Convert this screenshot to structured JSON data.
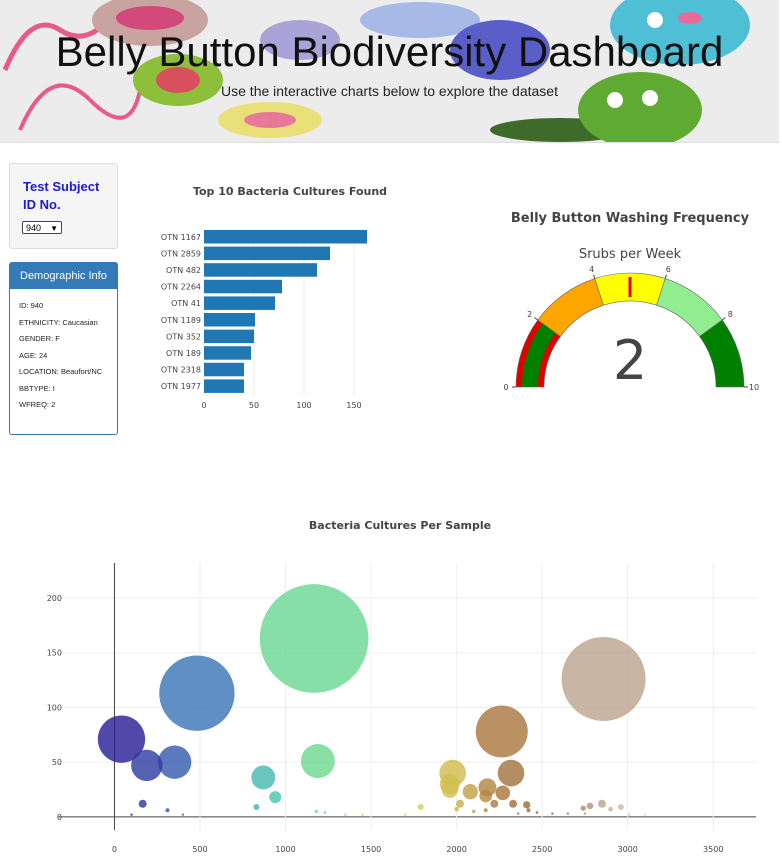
{
  "header": {
    "title": "Belly Button Biodiversity Dashboard",
    "subtitle": "Use the interactive charts below to explore the dataset"
  },
  "selector": {
    "label": "Test Subject ID No.",
    "selected": "940"
  },
  "demographics": {
    "heading": "Demographic Info",
    "rows": [
      "ID: 940",
      "ETHNICITY: Caucasian",
      "GENDER: F",
      "AGE: 24",
      "LOCATION: Beaufort/NC",
      "BBTYPE: I",
      "WFREQ: 2"
    ]
  },
  "colors": {
    "bar": "#1f77b4",
    "panel_blue": "#337ab7",
    "label_blue": "#1a1ad0"
  },
  "chart_data": [
    {
      "type": "bar",
      "orientation": "horizontal",
      "title": "Top 10 Bacteria Cultures Found",
      "categories": [
        "OTN 1167",
        "OTN 2859",
        "OTN 482",
        "OTN 2264",
        "OTN 41",
        "OTN 1189",
        "OTN 352",
        "OTN 189",
        "OTN 2318",
        "OTN 1977"
      ],
      "values": [
        163,
        126,
        113,
        78,
        71,
        51,
        50,
        47,
        40,
        40
      ],
      "xticks": [
        0,
        50,
        100,
        150
      ],
      "xlim": [
        0,
        171
      ]
    },
    {
      "type": "gauge",
      "title": "Belly Button Washing Frequency",
      "subtitle": "Srubs per Week",
      "value": 2,
      "range": [
        0,
        10
      ],
      "ticks": [
        0,
        2,
        4,
        6,
        8,
        10
      ],
      "steps": [
        {
          "range": [
            0,
            2
          ],
          "color": "#e00000"
        },
        {
          "range": [
            2,
            4
          ],
          "color": "#ffa500"
        },
        {
          "range": [
            4,
            6
          ],
          "color": "#ffff00"
        },
        {
          "range": [
            6,
            8
          ],
          "color": "#90ee90"
        },
        {
          "range": [
            8,
            10
          ],
          "color": "#008000"
        }
      ],
      "bar_color": "#008000",
      "threshold": 5
    },
    {
      "type": "scatter",
      "subtype": "bubble",
      "title": "Bacteria Cultures Per Sample",
      "xticks": [
        0,
        500,
        1000,
        1500,
        2000,
        2500,
        3000,
        3500
      ],
      "yticks": [
        0,
        50,
        100,
        150,
        200
      ],
      "xlim": [
        -330,
        3750
      ],
      "ylim": [
        -12,
        232
      ],
      "points": [
        {
          "x": 41,
          "y": 71,
          "size": 71
        },
        {
          "x": 189,
          "y": 47,
          "size": 47
        },
        {
          "x": 352,
          "y": 50,
          "size": 50
        },
        {
          "x": 482,
          "y": 113,
          "size": 113
        },
        {
          "x": 1167,
          "y": 163,
          "size": 163
        },
        {
          "x": 1189,
          "y": 51,
          "size": 51
        },
        {
          "x": 2264,
          "y": 78,
          "size": 78
        },
        {
          "x": 2859,
          "y": 126,
          "size": 126
        },
        {
          "x": 2318,
          "y": 40,
          "size": 40
        },
        {
          "x": 1977,
          "y": 40,
          "size": 40
        },
        {
          "x": 870,
          "y": 36,
          "size": 36
        },
        {
          "x": 940,
          "y": 18,
          "size": 18
        },
        {
          "x": 165,
          "y": 12,
          "size": 12
        },
        {
          "x": 310,
          "y": 6,
          "size": 6
        },
        {
          "x": 830,
          "y": 9,
          "size": 9
        },
        {
          "x": 1960,
          "y": 30,
          "size": 30
        },
        {
          "x": 1960,
          "y": 25,
          "size": 25
        },
        {
          "x": 2080,
          "y": 23,
          "size": 23
        },
        {
          "x": 2180,
          "y": 27,
          "size": 27
        },
        {
          "x": 2170,
          "y": 19,
          "size": 19
        },
        {
          "x": 2270,
          "y": 22,
          "size": 22
        },
        {
          "x": 2330,
          "y": 12,
          "size": 12
        },
        {
          "x": 2410,
          "y": 11,
          "size": 11
        },
        {
          "x": 2020,
          "y": 12,
          "size": 12
        },
        {
          "x": 2220,
          "y": 12,
          "size": 12
        },
        {
          "x": 2850,
          "y": 12,
          "size": 12
        },
        {
          "x": 2960,
          "y": 9,
          "size": 9
        },
        {
          "x": 2780,
          "y": 10,
          "size": 10
        },
        {
          "x": 1790,
          "y": 9,
          "size": 9
        },
        {
          "x": 2740,
          "y": 8,
          "size": 8
        },
        {
          "x": 2900,
          "y": 7,
          "size": 7
        },
        {
          "x": 2420,
          "y": 6,
          "size": 6
        },
        {
          "x": 1180,
          "y": 5,
          "size": 5
        },
        {
          "x": 1230,
          "y": 4,
          "size": 4
        },
        {
          "x": 2000,
          "y": 7,
          "size": 7
        },
        {
          "x": 2100,
          "y": 5,
          "size": 5
        },
        {
          "x": 2170,
          "y": 6,
          "size": 6
        },
        {
          "x": 2470,
          "y": 4,
          "size": 4
        },
        {
          "x": 2560,
          "y": 3,
          "size": 3
        },
        {
          "x": 2650,
          "y": 3,
          "size": 3
        },
        {
          "x": 2750,
          "y": 3,
          "size": 3
        },
        {
          "x": 100,
          "y": 2,
          "size": 2
        },
        {
          "x": 400,
          "y": 2,
          "size": 2
        },
        {
          "x": 1350,
          "y": 2,
          "size": 2
        },
        {
          "x": 1450,
          "y": 2,
          "size": 2
        },
        {
          "x": 1700,
          "y": 2,
          "size": 2
        },
        {
          "x": 2360,
          "y": 3,
          "size": 3
        },
        {
          "x": 3010,
          "y": 2,
          "size": 2
        },
        {
          "x": 3100,
          "y": 2,
          "size": 2
        }
      ]
    }
  ]
}
